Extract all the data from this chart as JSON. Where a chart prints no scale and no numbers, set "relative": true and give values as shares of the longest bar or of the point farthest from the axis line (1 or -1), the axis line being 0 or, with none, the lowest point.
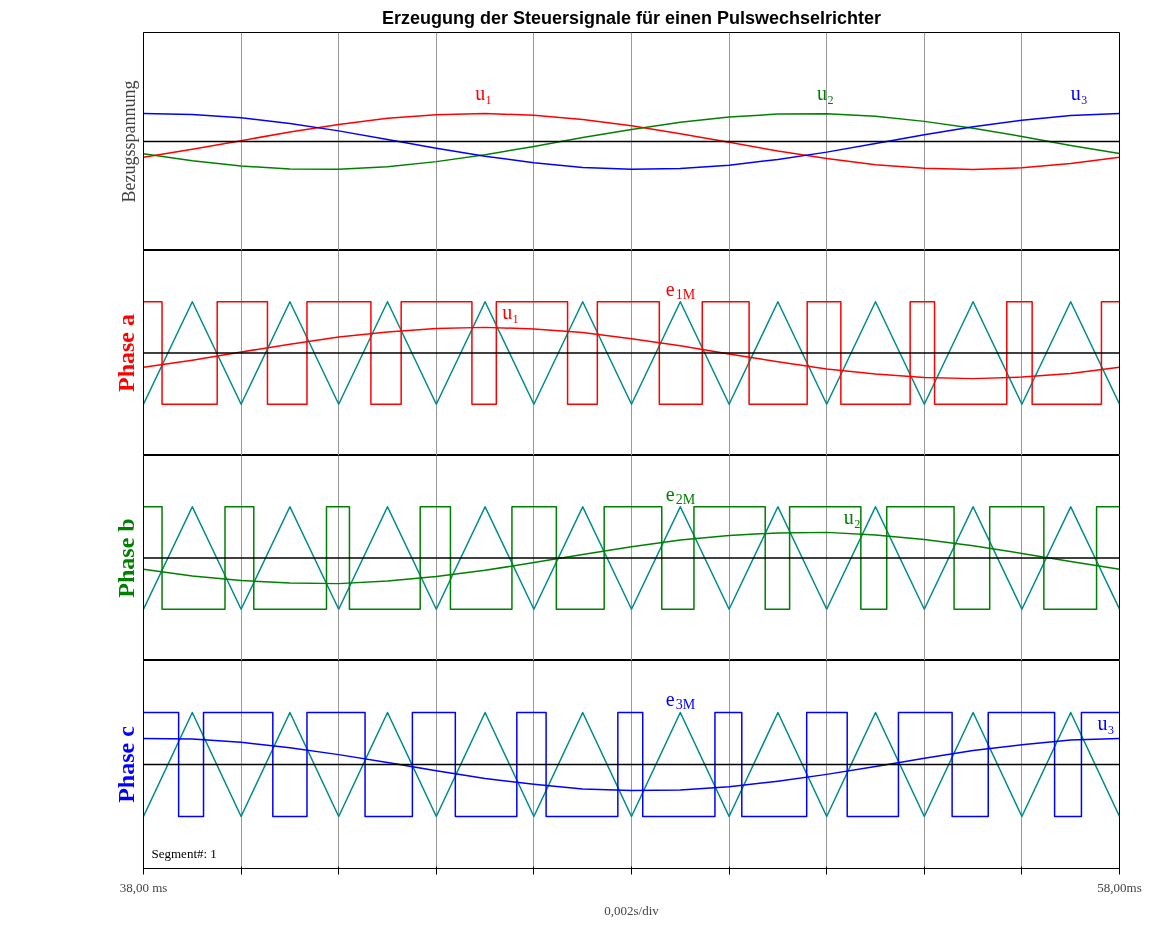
{
  "chart_data": [
    {
      "type": "line",
      "relative": true,
      "title": "Erzeugung der Steuersignale für einen Pulswechselrichter",
      "ylabel": "Bezugsspannung",
      "xlim": [
        38,
        58
      ],
      "xticks": [
        {
          "value": 38,
          "label": null
        },
        {
          "value": 40,
          "label": null
        },
        {
          "value": 42,
          "label": null
        },
        {
          "value": 44,
          "label": null
        },
        {
          "value": 46,
          "label": null
        },
        {
          "value": 48,
          "label": null
        },
        {
          "value": 50,
          "label": null
        },
        {
          "value": 52,
          "label": null
        },
        {
          "value": 54,
          "label": null
        },
        {
          "value": 56,
          "label": null
        },
        {
          "value": 58,
          "label": null
        }
      ],
      "grid": "x",
      "tick_labels": false,
      "x": [
        38,
        39,
        40,
        41,
        42,
        43,
        44,
        45,
        46,
        47,
        48,
        49,
        50,
        51,
        52,
        53,
        54,
        55,
        56,
        57,
        58
      ],
      "series": [
        {
          "name": "u₁",
          "color": "#ff0000",
          "values": [
            -0.56,
            -0.28,
            0.03,
            0.34,
            0.61,
            0.83,
            0.96,
            1.0,
            0.94,
            0.79,
            0.56,
            0.28,
            -0.03,
            -0.34,
            -0.61,
            -0.83,
            -0.96,
            -1.0,
            -0.94,
            -0.79,
            -0.56
          ]
        },
        {
          "name": "u₂",
          "color": "#008000",
          "values": [
            -0.44,
            -0.69,
            -0.88,
            -0.98,
            -0.99,
            -0.9,
            -0.72,
            -0.47,
            -0.18,
            0.14,
            0.43,
            0.69,
            0.88,
            0.98,
            0.99,
            0.9,
            0.72,
            0.47,
            0.18,
            -0.14,
            -0.43
          ]
        },
        {
          "name": "u₃",
          "color": "#0000ff",
          "values": [
            1.0,
            0.97,
            0.85,
            0.64,
            0.38,
            0.07,
            -0.24,
            -0.53,
            -0.76,
            -0.93,
            -0.99,
            -0.97,
            -0.85,
            -0.64,
            -0.38,
            -0.07,
            0.24,
            0.53,
            0.76,
            0.93,
            1.0
          ]
        }
      ]
    },
    {
      "type": "line",
      "relative": true,
      "ylabel": "Phase a",
      "xlim": [
        38,
        58
      ],
      "xticks": [
        {
          "value": 38,
          "label": null
        },
        {
          "value": 40,
          "label": null
        },
        {
          "value": 42,
          "label": null
        },
        {
          "value": 44,
          "label": null
        },
        {
          "value": 46,
          "label": null
        },
        {
          "value": 48,
          "label": null
        },
        {
          "value": 50,
          "label": null
        },
        {
          "value": 52,
          "label": null
        },
        {
          "value": 54,
          "label": null
        },
        {
          "value": 56,
          "label": null
        },
        {
          "value": 58,
          "label": null
        }
      ],
      "grid": "x",
      "tick_labels": false,
      "x": [
        38,
        39,
        40,
        41,
        42,
        43,
        44,
        45,
        46,
        47,
        48,
        49,
        50,
        51,
        52,
        53,
        54,
        55,
        56,
        57,
        58
      ],
      "series": [
        {
          "color": "#008b8b",
          "values": [
            -1,
            1,
            -1,
            1,
            -1,
            1,
            -1,
            1,
            -1,
            1,
            -1,
            1,
            -1,
            1,
            -1,
            1,
            -1,
            1,
            -1,
            1,
            -1
          ]
        },
        {
          "name": "u₁",
          "color": "#ff0000",
          "values": [
            -0.28,
            -0.14,
            0.02,
            0.17,
            0.31,
            0.41,
            0.48,
            0.5,
            0.47,
            0.4,
            0.28,
            0.14,
            -0.02,
            -0.17,
            -0.31,
            -0.41,
            -0.48,
            -0.5,
            -0.47,
            -0.4,
            -0.28
          ]
        },
        {
          "name": "e$_{1M}$",
          "type": "step",
          "color": "#ff0000",
          "x": [
            38,
            38.38,
            39.51,
            40.54,
            41.35,
            42.66,
            43.28,
            44.73,
            45.23,
            46.69,
            47.3,
            48.57,
            49.45,
            50.41,
            51.6,
            52.29,
            53.71,
            54.21,
            55.69,
            56.21,
            57.63,
            58
          ],
          "values": [
            1,
            -1,
            1,
            -1,
            1,
            -1,
            1,
            -1,
            1,
            -1,
            1,
            -1,
            1,
            -1,
            1,
            -1,
            1,
            -1,
            1,
            -1,
            1,
            1
          ]
        }
      ]
    },
    {
      "type": "line",
      "relative": true,
      "ylabel": "Phase b",
      "xlim": [
        38,
        58
      ],
      "xticks": [
        {
          "value": 38,
          "label": null
        },
        {
          "value": 40,
          "label": null
        },
        {
          "value": 42,
          "label": null
        },
        {
          "value": 44,
          "label": null
        },
        {
          "value": 46,
          "label": null
        },
        {
          "value": 48,
          "label": null
        },
        {
          "value": 50,
          "label": null
        },
        {
          "value": 52,
          "label": null
        },
        {
          "value": 54,
          "label": null
        },
        {
          "value": 56,
          "label": null
        },
        {
          "value": 58,
          "label": null
        }
      ],
      "grid": "x",
      "tick_labels": false,
      "x": [
        38,
        39,
        40,
        41,
        42,
        43,
        44,
        45,
        46,
        47,
        48,
        49,
        50,
        51,
        52,
        53,
        54,
        55,
        56,
        57,
        58
      ],
      "series": [
        {
          "color": "#008b8b",
          "values": [
            -1,
            1,
            -1,
            1,
            -1,
            1,
            -1,
            1,
            -1,
            1,
            -1,
            1,
            -1,
            1,
            -1,
            1,
            -1,
            1,
            -1,
            1,
            -1
          ]
        },
        {
          "name": "u₂",
          "color": "#008000",
          "values": [
            -0.22,
            -0.35,
            -0.44,
            -0.49,
            -0.5,
            -0.45,
            -0.36,
            -0.24,
            -0.09,
            0.07,
            0.22,
            0.35,
            0.44,
            0.49,
            0.5,
            0.45,
            0.36,
            0.24,
            0.09,
            -0.07,
            -0.22
          ]
        },
        {
          "name": "e$_{2M}$",
          "type": "step",
          "color": "#008000",
          "x": [
            38,
            38.38,
            39.67,
            40.26,
            41.75,
            42.22,
            43.67,
            44.29,
            45.55,
            46.46,
            47.44,
            48.62,
            49.28,
            50.74,
            51.24,
            52.7,
            53.23,
            54.61,
            55.34,
            56.45,
            57.53,
            58
          ],
          "values": [
            1,
            -1,
            1,
            -1,
            1,
            -1,
            1,
            -1,
            1,
            -1,
            1,
            -1,
            1,
            -1,
            1,
            -1,
            1,
            -1,
            1,
            -1,
            1,
            1
          ]
        }
      ]
    },
    {
      "type": "line",
      "relative": true,
      "ylabel": "Phase c",
      "xlabel": "0,002s/div",
      "xlim": [
        38,
        58
      ],
      "xticks": [
        {
          "value": 38,
          "label": "38,00 ms"
        },
        {
          "value": 40,
          "label": null
        },
        {
          "value": 42,
          "label": null
        },
        {
          "value": 44,
          "label": null
        },
        {
          "value": 46,
          "label": null
        },
        {
          "value": 48,
          "label": null
        },
        {
          "value": 50,
          "label": null
        },
        {
          "value": 52,
          "label": null
        },
        {
          "value": 54,
          "label": null
        },
        {
          "value": 56,
          "label": null
        },
        {
          "value": 58,
          "label": "58,00ms"
        }
      ],
      "grid": "x",
      "tick_labels": "x",
      "annotations": [
        "Segment#: 1"
      ],
      "x": [
        38,
        39,
        40,
        41,
        42,
        43,
        44,
        45,
        46,
        47,
        48,
        49,
        50,
        51,
        52,
        53,
        54,
        55,
        56,
        57,
        58
      ],
      "series": [
        {
          "color": "#008b8b",
          "values": [
            -1,
            1,
            -1,
            1,
            -1,
            1,
            -1,
            1,
            -1,
            1,
            -1,
            1,
            -1,
            1,
            -1,
            1,
            -1,
            1,
            -1,
            1,
            -1
          ]
        },
        {
          "name": "u₃",
          "color": "#0000ff",
          "values": [
            0.5,
            0.49,
            0.43,
            0.32,
            0.19,
            0.04,
            -0.12,
            -0.27,
            -0.38,
            -0.47,
            -0.5,
            -0.49,
            -0.43,
            -0.32,
            -0.19,
            -0.04,
            0.12,
            0.27,
            0.38,
            0.47,
            0.5
          ]
        },
        {
          "name": "e$_{3M}$",
          "type": "step",
          "color": "#0000ff",
          "x": [
            38,
            38.72,
            39.23,
            40.65,
            41.35,
            42.54,
            43.51,
            44.39,
            45.65,
            46.25,
            47.72,
            48.23,
            49.71,
            50.26,
            51.59,
            52.42,
            53.47,
            54.57,
            55.31,
            56.67,
            57.22,
            58
          ],
          "values": [
            1,
            -1,
            1,
            -1,
            1,
            -1,
            1,
            -1,
            1,
            -1,
            1,
            -1,
            1,
            -1,
            1,
            -1,
            1,
            -1,
            1,
            -1,
            1,
            1
          ]
        }
      ]
    }
  ]
}
